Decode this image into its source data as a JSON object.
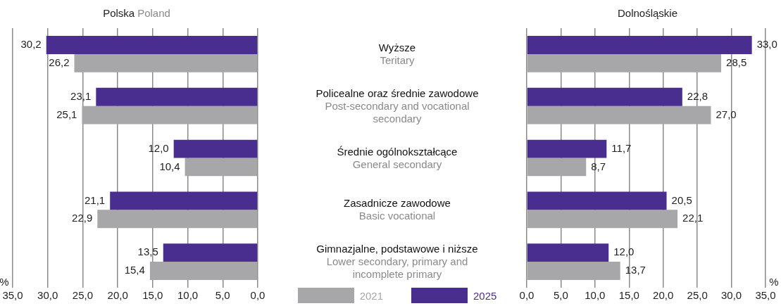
{
  "chart_data": [
    {
      "type": "bar",
      "orientation": "horizontal",
      "title": "Polska",
      "subtitle": "Poland",
      "xlabel": "%",
      "categories": [
        "Wyższe\nTeritary",
        "Policealne oraz średnie zawodowe\nPost-secondary and vocational secondary",
        "Średnie ogólnokształcące\nGeneral secondary",
        "Zasadnicze zawodowe\nBasic vocational",
        "Gimnazjalne, podstawowe i niższe\nLower secondary, primary and incomplete primary"
      ],
      "series": [
        {
          "name": "2021",
          "color": "#a7a7aa",
          "values": [
            26.2,
            25.1,
            10.4,
            22.9,
            15.4
          ],
          "value_labels": [
            "26,2",
            "25,1",
            "10,4",
            "22,9",
            "15,4"
          ]
        },
        {
          "name": "2025",
          "color": "#4a2e8f",
          "values": [
            30.2,
            23.1,
            12.0,
            21.1,
            13.5
          ],
          "value_labels": [
            "30,2",
            "23,1",
            "12,0",
            "21,1",
            "13,5"
          ]
        }
      ],
      "xlim": [
        35,
        0
      ],
      "xticks": [
        {
          "value": 35,
          "label": "35,0"
        },
        {
          "value": 30,
          "label": "30,0"
        },
        {
          "value": 25,
          "label": "25,0"
        },
        {
          "value": 20,
          "label": "20,0"
        },
        {
          "value": 15,
          "label": "15,0"
        },
        {
          "value": 10,
          "label": "10,0"
        },
        {
          "value": 5,
          "label": "5,0"
        },
        {
          "value": 0,
          "label": "0,0"
        }
      ],
      "grid": "x",
      "legend": "bottom"
    },
    {
      "type": "bar",
      "orientation": "horizontal",
      "title": "Dolnośląskie",
      "xlabel": "%",
      "categories": [
        null,
        null,
        null,
        null,
        null
      ],
      "series": [
        {
          "color": "#a7a7aa",
          "values": [
            28.5,
            27.0,
            8.7,
            22.1,
            13.7
          ],
          "value_labels": [
            "28,5",
            "27,0",
            "8,7",
            "22,1",
            "13,7"
          ]
        },
        {
          "color": "#4a2e8f",
          "values": [
            33.0,
            22.8,
            11.7,
            20.5,
            12.0
          ],
          "value_labels": [
            "33,0",
            "22,8",
            "11,7",
            "20,5",
            "12,0"
          ]
        }
      ],
      "xlim": [
        0,
        35
      ],
      "xticks": [
        {
          "value": 0,
          "label": "0,0"
        },
        {
          "value": 5,
          "label": "5,0"
        },
        {
          "value": 10,
          "label": "10,0"
        },
        {
          "value": 15,
          "label": "15,0"
        },
        {
          "value": 20,
          "label": "20,0"
        },
        {
          "value": 25,
          "label": "25,0"
        },
        {
          "value": 30,
          "label": "30,0"
        },
        {
          "value": 35,
          "label": "35,0"
        }
      ],
      "grid": "x"
    }
  ]
}
